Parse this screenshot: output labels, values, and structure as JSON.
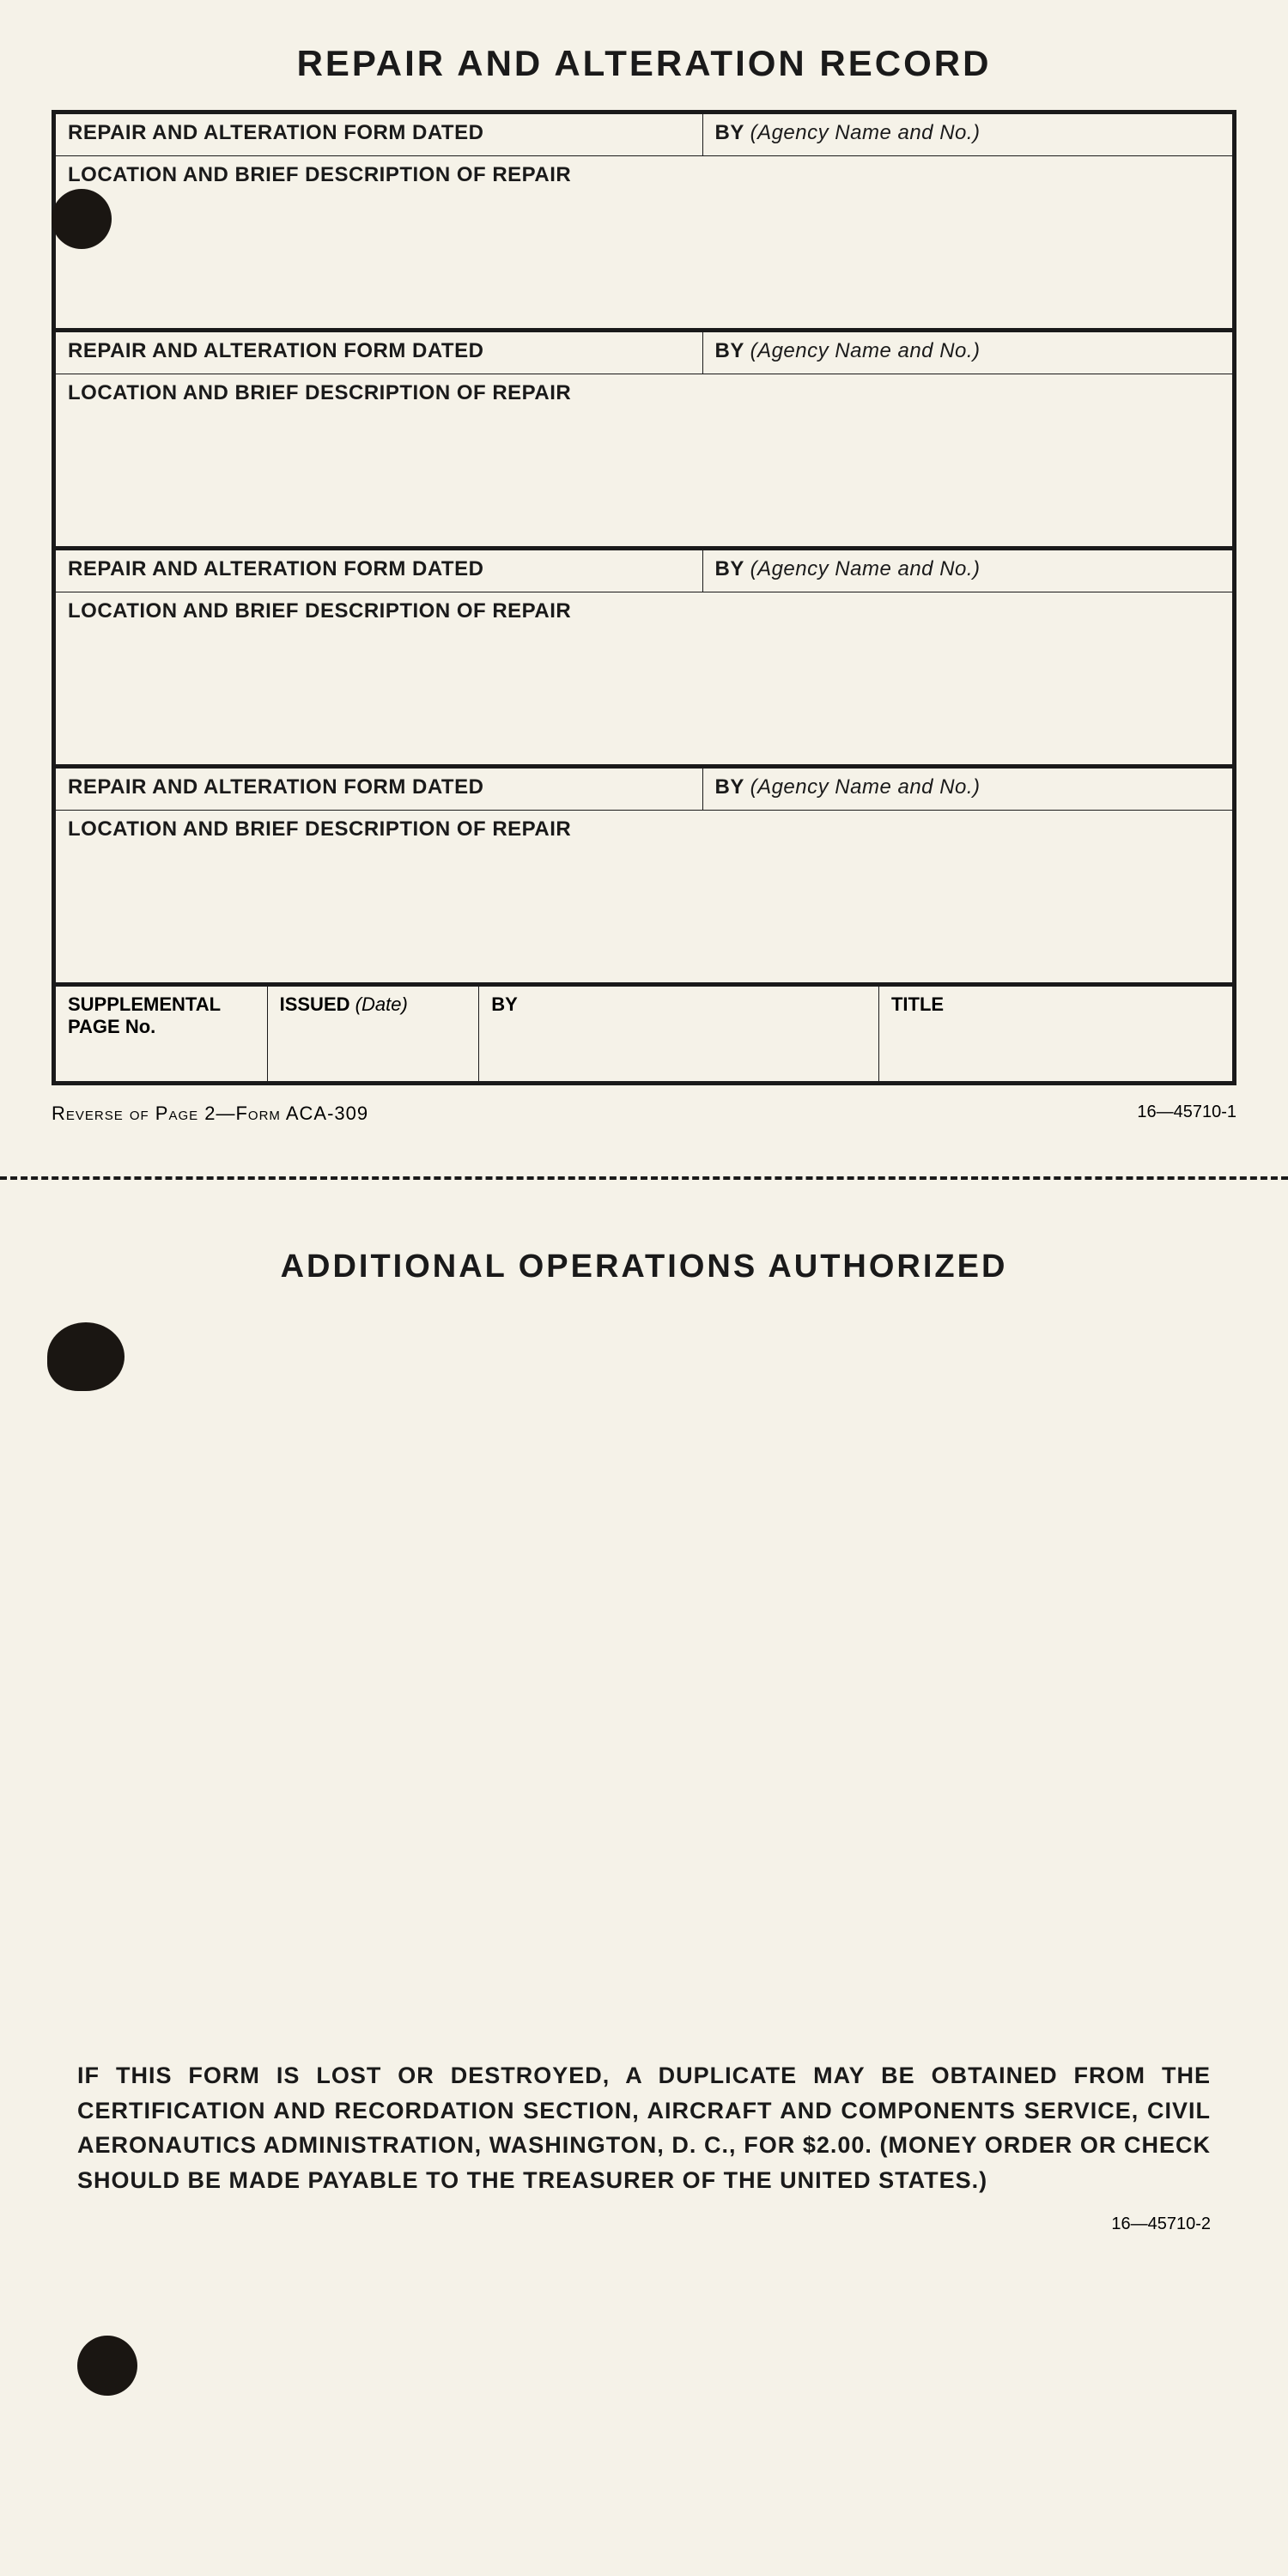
{
  "title": "REPAIR AND ALTERATION RECORD",
  "labels": {
    "form_dated": "REPAIR AND ALTERATION FORM DATED",
    "by": "BY",
    "by_note": "(Agency Name and No.)",
    "location_desc": "LOCATION AND BRIEF DESCRIPTION OF REPAIR",
    "supp_page": "SUPPLEMENTAL PAGE No.",
    "issued": "ISSUED",
    "issued_note": "(Date)",
    "title_col": "TITLE"
  },
  "reverse_text": "Reverse of Page 2—Form ACA-309",
  "code_top": "16—45710-1",
  "subtitle": "ADDITIONAL OPERATIONS AUTHORIZED",
  "disclaimer": "IF THIS FORM IS LOST OR DESTROYED, A DUPLICATE MAY BE OBTAINED FROM THE CERTIFICATION AND RECORDATION SECTION, AIRCRAFT AND COMPONENTS SERVICE, CIVIL AERONAUTICS ADMINISTRATION, WASHINGTON, D. C., FOR $2.00. (MONEY ORDER OR CHECK SHOULD BE MADE PAYABLE TO THE TREASURER OF THE UNITED STATES.)",
  "code_bottom": "16—45710-2",
  "colors": {
    "page_bg": "#f5f2e8",
    "ink": "#1a1a1a",
    "outer_bg": "#e8e4da"
  }
}
